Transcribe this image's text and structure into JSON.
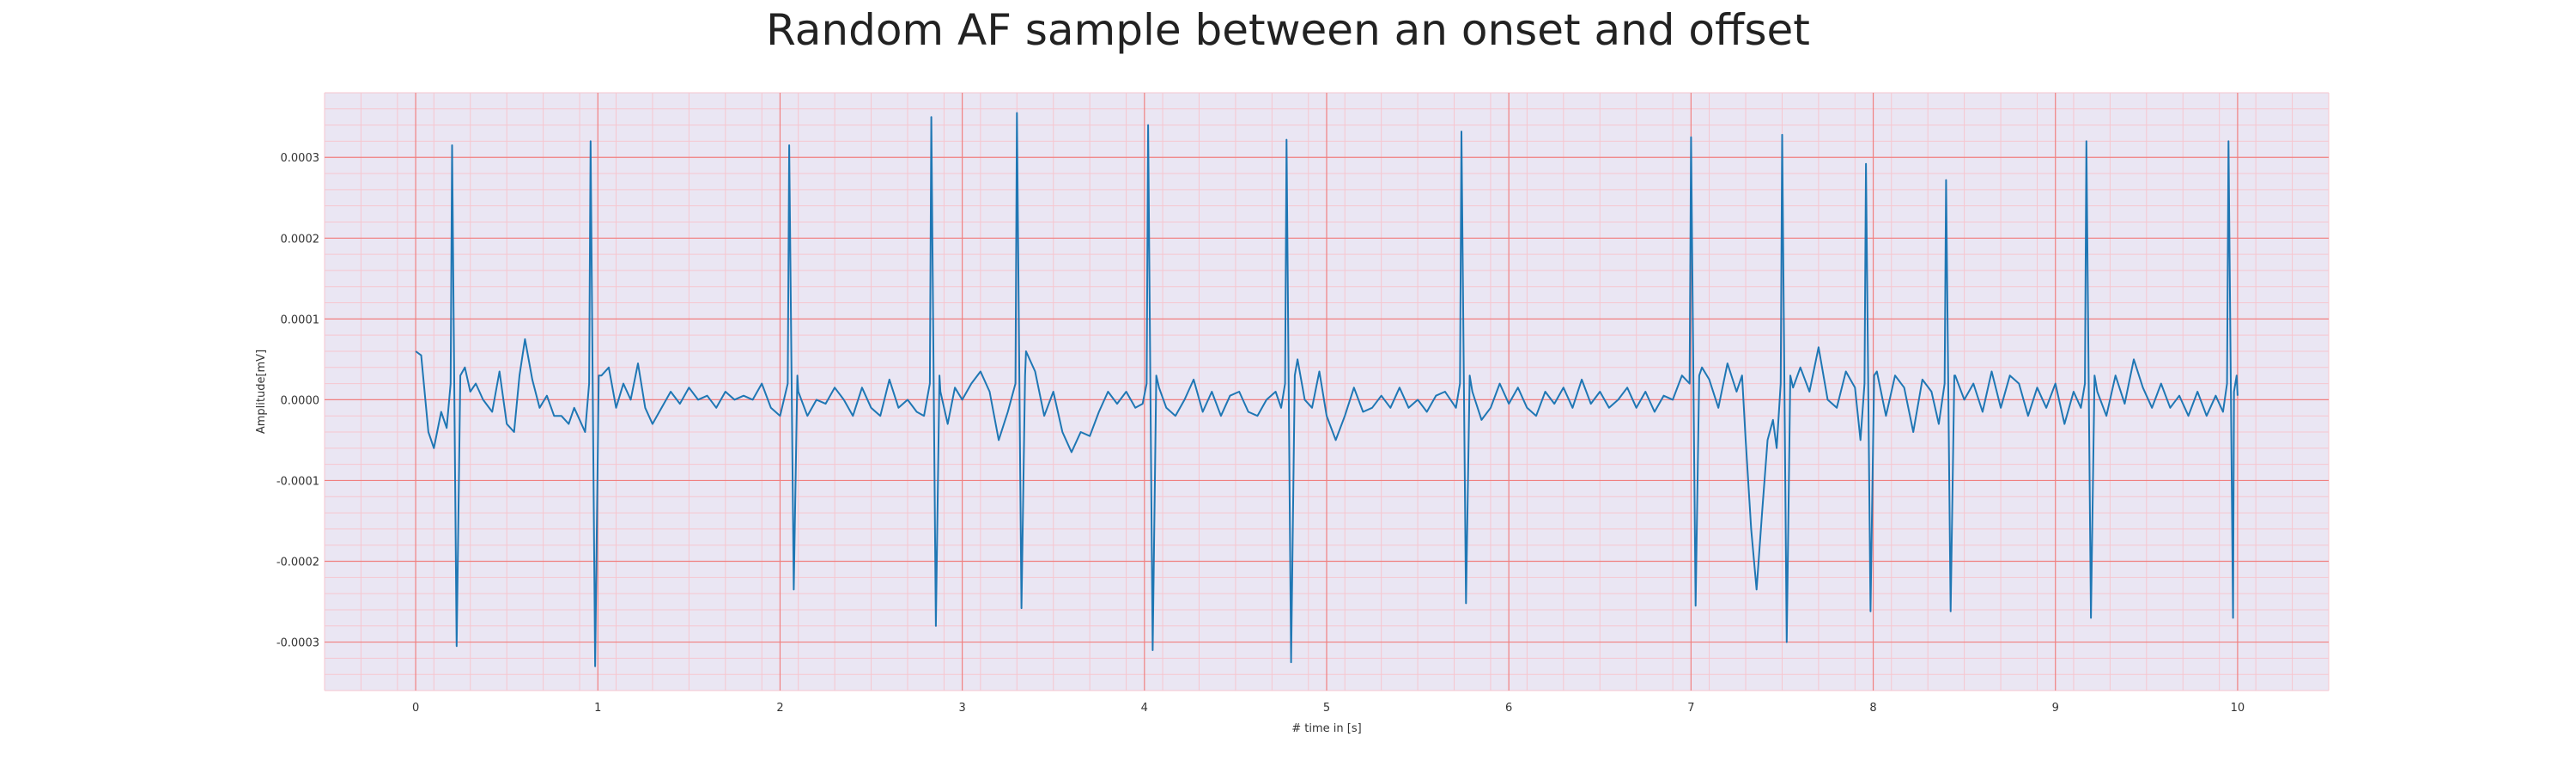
{
  "chart_data": {
    "type": "line",
    "title": "Random AF sample between an onset and offset",
    "xlabel": "# time in [s]",
    "ylabel": "Amplitude[mV]",
    "xlim": [
      -0.5,
      10.5
    ],
    "ylim": [
      -0.00036,
      0.00038
    ],
    "x_ticks": [
      0,
      1,
      2,
      3,
      4,
      5,
      6,
      7,
      8,
      9,
      10
    ],
    "x_tick_labels": [
      "0",
      "1",
      "2",
      "3",
      "4",
      "5",
      "6",
      "7",
      "8",
      "9",
      "10"
    ],
    "y_ticks": [
      0.0003,
      0.0002,
      0.0001,
      0.0,
      -0.0001,
      -0.0002,
      -0.0003
    ],
    "y_tick_labels": [
      "0.0003",
      "0.0002",
      "0.0001",
      "0.0000",
      "-0.0001",
      "-0.0002",
      "-0.0003"
    ],
    "grid": true,
    "background_color": "#eae6f3",
    "major_grid_color": "#f08080",
    "minor_grid_color": "#f6c6cf",
    "line_color": "#1f77b4",
    "beats": [
      {
        "t": 0.2,
        "r": 0.000315,
        "s": -0.000305
      },
      {
        "t": 0.96,
        "r": 0.00032,
        "s": -0.00033
      },
      {
        "t": 2.05,
        "r": 0.000315,
        "s": -0.000235
      },
      {
        "t": 2.83,
        "r": 0.00035,
        "s": -0.00028
      },
      {
        "t": 3.3,
        "r": 0.000355,
        "s": -0.000258
      },
      {
        "t": 4.02,
        "r": 0.00034,
        "s": -0.00031
      },
      {
        "t": 4.78,
        "r": 0.000322,
        "s": -0.000325
      },
      {
        "t": 5.74,
        "r": 0.000332,
        "s": -0.000252
      },
      {
        "t": 7.0,
        "r": 0.000325,
        "s": -0.000255
      },
      {
        "t": 7.5,
        "r": 0.000328,
        "s": -0.0003
      },
      {
        "t": 7.96,
        "r": 0.000292,
        "s": -0.000262
      },
      {
        "t": 8.4,
        "r": 0.000272,
        "s": -0.000262
      },
      {
        "t": 9.17,
        "r": 0.00032,
        "s": -0.00027
      },
      {
        "t": 9.95,
        "r": 0.00032,
        "s": -0.00027
      }
    ],
    "baseline_points": [
      [
        0.0,
        6e-05
      ],
      [
        0.03,
        5.5e-05
      ],
      [
        0.07,
        -4e-05
      ],
      [
        0.1,
        -6e-05
      ],
      [
        0.14,
        -1.5e-05
      ],
      [
        0.17,
        -3.5e-05
      ],
      [
        0.27,
        4e-05
      ],
      [
        0.3,
        1e-05
      ],
      [
        0.33,
        2e-05
      ],
      [
        0.37,
        0.0
      ],
      [
        0.42,
        -1.5e-05
      ],
      [
        0.46,
        3.5e-05
      ],
      [
        0.5,
        -3e-05
      ],
      [
        0.54,
        -4e-05
      ],
      [
        0.57,
        3e-05
      ],
      [
        0.6,
        7.5e-05
      ],
      [
        0.64,
        2.5e-05
      ],
      [
        0.68,
        -1e-05
      ],
      [
        0.72,
        5e-06
      ],
      [
        0.76,
        -2e-05
      ],
      [
        0.8,
        -2e-05
      ],
      [
        0.84,
        -3e-05
      ],
      [
        0.87,
        -1e-05
      ],
      [
        0.9,
        -2.5e-05
      ],
      [
        0.93,
        -4e-05
      ],
      [
        1.02,
        3e-05
      ],
      [
        1.06,
        4e-05
      ],
      [
        1.1,
        -1e-05
      ],
      [
        1.14,
        2e-05
      ],
      [
        1.18,
        0.0
      ],
      [
        1.22,
        4.5e-05
      ],
      [
        1.26,
        -1e-05
      ],
      [
        1.3,
        -3e-05
      ],
      [
        1.35,
        -1e-05
      ],
      [
        1.4,
        1e-05
      ],
      [
        1.45,
        -5e-06
      ],
      [
        1.5,
        1.5e-05
      ],
      [
        1.55,
        0.0
      ],
      [
        1.6,
        5e-06
      ],
      [
        1.65,
        -1e-05
      ],
      [
        1.7,
        1e-05
      ],
      [
        1.75,
        0.0
      ],
      [
        1.8,
        5e-06
      ],
      [
        1.85,
        0.0
      ],
      [
        1.9,
        2e-05
      ],
      [
        1.95,
        -1e-05
      ],
      [
        2.0,
        -2e-05
      ],
      [
        2.1,
        1e-05
      ],
      [
        2.15,
        -2e-05
      ],
      [
        2.2,
        0.0
      ],
      [
        2.25,
        -5e-06
      ],
      [
        2.3,
        1.5e-05
      ],
      [
        2.35,
        0.0
      ],
      [
        2.4,
        -2e-05
      ],
      [
        2.45,
        1.5e-05
      ],
      [
        2.5,
        -1e-05
      ],
      [
        2.55,
        -2e-05
      ],
      [
        2.6,
        2.5e-05
      ],
      [
        2.65,
        -1e-05
      ],
      [
        2.7,
        0.0
      ],
      [
        2.75,
        -1.5e-05
      ],
      [
        2.79,
        -2e-05
      ],
      [
        2.88,
        1e-05
      ],
      [
        2.92,
        -3e-05
      ],
      [
        2.96,
        1.5e-05
      ],
      [
        3.0,
        0.0
      ],
      [
        3.05,
        2e-05
      ],
      [
        3.1,
        3.5e-05
      ],
      [
        3.15,
        1e-05
      ],
      [
        3.2,
        -5e-05
      ],
      [
        3.25,
        -1.5e-05
      ],
      [
        3.35,
        6e-05
      ],
      [
        3.4,
        3.5e-05
      ],
      [
        3.45,
        -2e-05
      ],
      [
        3.5,
        1e-05
      ],
      [
        3.55,
        -4e-05
      ],
      [
        3.6,
        -6.5e-05
      ],
      [
        3.65,
        -4e-05
      ],
      [
        3.7,
        -4.5e-05
      ],
      [
        3.75,
        -1.5e-05
      ],
      [
        3.8,
        1e-05
      ],
      [
        3.85,
        -5e-06
      ],
      [
        3.9,
        1e-05
      ],
      [
        3.95,
        -1e-05
      ],
      [
        3.99,
        -5e-06
      ],
      [
        4.08,
        1.5e-05
      ],
      [
        4.12,
        -1e-05
      ],
      [
        4.17,
        -2e-05
      ],
      [
        4.22,
        0.0
      ],
      [
        4.27,
        2.5e-05
      ],
      [
        4.32,
        -1.5e-05
      ],
      [
        4.37,
        1e-05
      ],
      [
        4.42,
        -2e-05
      ],
      [
        4.47,
        5e-06
      ],
      [
        4.52,
        1e-05
      ],
      [
        4.57,
        -1.5e-05
      ],
      [
        4.62,
        -2e-05
      ],
      [
        4.67,
        0.0
      ],
      [
        4.72,
        1e-05
      ],
      [
        4.75,
        -1e-05
      ],
      [
        4.84,
        5e-05
      ],
      [
        4.88,
        0.0
      ],
      [
        4.92,
        -1e-05
      ],
      [
        4.96,
        3.5e-05
      ],
      [
        5.0,
        -2e-05
      ],
      [
        5.05,
        -5e-05
      ],
      [
        5.1,
        -2e-05
      ],
      [
        5.15,
        1.5e-05
      ],
      [
        5.2,
        -1.5e-05
      ],
      [
        5.25,
        -1e-05
      ],
      [
        5.3,
        5e-06
      ],
      [
        5.35,
        -1e-05
      ],
      [
        5.4,
        1.5e-05
      ],
      [
        5.45,
        -1e-05
      ],
      [
        5.5,
        0.0
      ],
      [
        5.55,
        -1.5e-05
      ],
      [
        5.6,
        5e-06
      ],
      [
        5.65,
        1e-05
      ],
      [
        5.71,
        -1e-05
      ],
      [
        5.8,
        1e-05
      ],
      [
        5.85,
        -2.5e-05
      ],
      [
        5.9,
        -1e-05
      ],
      [
        5.95,
        2e-05
      ],
      [
        6.0,
        -5e-06
      ],
      [
        6.05,
        1.5e-05
      ],
      [
        6.1,
        -1e-05
      ],
      [
        6.15,
        -2e-05
      ],
      [
        6.2,
        1e-05
      ],
      [
        6.25,
        -5e-06
      ],
      [
        6.3,
        1.5e-05
      ],
      [
        6.35,
        -1e-05
      ],
      [
        6.4,
        2.5e-05
      ],
      [
        6.45,
        -5e-06
      ],
      [
        6.5,
        1e-05
      ],
      [
        6.55,
        -1e-05
      ],
      [
        6.6,
        0.0
      ],
      [
        6.65,
        1.5e-05
      ],
      [
        6.7,
        -1e-05
      ],
      [
        6.75,
        1e-05
      ],
      [
        6.8,
        -1.5e-05
      ],
      [
        6.85,
        5e-06
      ],
      [
        6.9,
        0.0
      ],
      [
        6.95,
        3e-05
      ],
      [
        7.06,
        4e-05
      ],
      [
        7.1,
        2.5e-05
      ],
      [
        7.15,
        -1e-05
      ],
      [
        7.2,
        4.5e-05
      ],
      [
        7.25,
        1e-05
      ],
      [
        7.28,
        3e-05
      ],
      [
        7.3,
        -5e-05
      ],
      [
        7.33,
        -0.00016
      ],
      [
        7.36,
        -0.000235
      ],
      [
        7.39,
        -0.00014
      ],
      [
        7.42,
        -5e-05
      ],
      [
        7.45,
        -2.5e-05
      ],
      [
        7.47,
        -6e-05
      ],
      [
        7.56,
        1.5e-05
      ],
      [
        7.6,
        4e-05
      ],
      [
        7.65,
        1e-05
      ],
      [
        7.7,
        6.5e-05
      ],
      [
        7.75,
        0.0
      ],
      [
        7.8,
        -1e-05
      ],
      [
        7.85,
        3.5e-05
      ],
      [
        7.9,
        1.5e-05
      ],
      [
        7.93,
        -5e-05
      ],
      [
        8.02,
        3.5e-05
      ],
      [
        8.07,
        -2e-05
      ],
      [
        8.12,
        3e-05
      ],
      [
        8.17,
        1.5e-05
      ],
      [
        8.22,
        -4e-05
      ],
      [
        8.27,
        2.5e-05
      ],
      [
        8.32,
        1e-05
      ],
      [
        8.36,
        -3e-05
      ],
      [
        8.45,
        3e-05
      ],
      [
        8.5,
        0.0
      ],
      [
        8.55,
        2e-05
      ],
      [
        8.6,
        -1.5e-05
      ],
      [
        8.65,
        3.5e-05
      ],
      [
        8.7,
        -1e-05
      ],
      [
        8.75,
        3e-05
      ],
      [
        8.8,
        2e-05
      ],
      [
        8.85,
        -2e-05
      ],
      [
        8.9,
        1.5e-05
      ],
      [
        8.95,
        -1e-05
      ],
      [
        9.0,
        2e-05
      ],
      [
        9.05,
        -3e-05
      ],
      [
        9.1,
        1e-05
      ],
      [
        9.14,
        -1e-05
      ],
      [
        9.23,
        1e-05
      ],
      [
        9.28,
        -2e-05
      ],
      [
        9.33,
        3e-05
      ],
      [
        9.38,
        -5e-06
      ],
      [
        9.43,
        5e-05
      ],
      [
        9.48,
        1.5e-05
      ],
      [
        9.53,
        -1e-05
      ],
      [
        9.58,
        2e-05
      ],
      [
        9.63,
        -1e-05
      ],
      [
        9.68,
        5e-06
      ],
      [
        9.73,
        -2e-05
      ],
      [
        9.78,
        1e-05
      ],
      [
        9.83,
        -2e-05
      ],
      [
        9.88,
        5e-06
      ],
      [
        9.92,
        -1.5e-05
      ],
      [
        9.98,
        1e-05
      ],
      [
        10.0,
        5e-06
      ]
    ]
  }
}
